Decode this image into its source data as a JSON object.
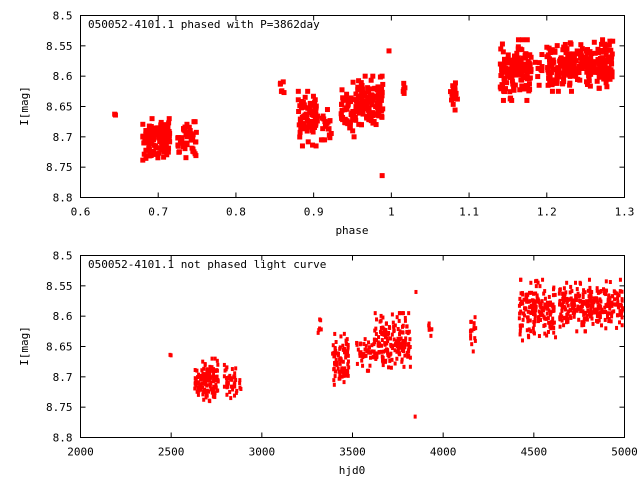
{
  "chart_data": [
    {
      "type": "scatter",
      "title": "050052-4101.1 phased with P=3862day",
      "xlabel": "phase",
      "ylabel": "I[mag]",
      "xlim": [
        0.6,
        1.3
      ],
      "ylim": [
        8.8,
        8.5
      ],
      "y_inverted": true,
      "x_ticks": [
        "0.6",
        "0.7",
        "0.8",
        "0.9",
        "1",
        "1.1",
        "1.2",
        "1.3"
      ],
      "x_tick_values": [
        0.6,
        0.7,
        0.8,
        0.9,
        1.0,
        1.1,
        1.2,
        1.3
      ],
      "y_ticks": [
        "8.5",
        "8.55",
        "8.6",
        "8.65",
        "8.7",
        "8.75",
        "8.8"
      ],
      "y_tick_values": [
        8.5,
        8.55,
        8.6,
        8.65,
        8.7,
        8.75,
        8.8
      ],
      "grid": false,
      "marker_color": "#ff0000",
      "clusters": [
        {
          "x": [
            0.642,
            0.645
          ],
          "y_center": 8.665,
          "y_spread": 0.005,
          "n": 2
        },
        {
          "x": [
            0.68,
            0.715
          ],
          "y_center": 8.705,
          "y_spread": 0.035,
          "n": 120
        },
        {
          "x": [
            0.725,
            0.75
          ],
          "y_center": 8.705,
          "y_spread": 0.03,
          "n": 45
        },
        {
          "x": [
            0.857,
            0.862
          ],
          "y_center": 8.62,
          "y_spread": 0.02,
          "n": 6
        },
        {
          "x": [
            0.88,
            0.905
          ],
          "y_center": 8.67,
          "y_spread": 0.045,
          "n": 80
        },
        {
          "x": [
            0.91,
            0.925
          ],
          "y_center": 8.68,
          "y_spread": 0.025,
          "n": 20
        },
        {
          "x": [
            0.935,
            0.955
          ],
          "y_center": 8.655,
          "y_spread": 0.045,
          "n": 50
        },
        {
          "x": [
            0.955,
            0.99
          ],
          "y_center": 8.64,
          "y_spread": 0.04,
          "n": 120
        },
        {
          "x": [
            0.985,
            0.99
          ],
          "y_center": 8.765,
          "y_spread": 0.002,
          "n": 1
        },
        {
          "x": [
            0.995,
            1.0
          ],
          "y_center": 8.56,
          "y_spread": 0.002,
          "n": 1
        },
        {
          "x": [
            1.015,
            1.02
          ],
          "y_center": 8.62,
          "y_spread": 0.02,
          "n": 7
        },
        {
          "x": [
            1.075,
            1.085
          ],
          "y_center": 8.63,
          "y_spread": 0.03,
          "n": 16
        },
        {
          "x": [
            1.14,
            1.18
          ],
          "y_center": 8.59,
          "y_spread": 0.05,
          "n": 150
        },
        {
          "x": [
            1.185,
            1.195
          ],
          "y_center": 8.585,
          "y_spread": 0.03,
          "n": 10
        },
        {
          "x": [
            1.2,
            1.24
          ],
          "y_center": 8.585,
          "y_spread": 0.04,
          "n": 130
        },
        {
          "x": [
            1.24,
            1.285
          ],
          "y_center": 8.58,
          "y_spread": 0.04,
          "n": 150
        }
      ]
    },
    {
      "type": "scatter",
      "title": "050052-4101.1 not phased light curve",
      "xlabel": "hjd0",
      "ylabel": "I[mag]",
      "xlim": [
        2000,
        5000
      ],
      "ylim": [
        8.8,
        8.5
      ],
      "y_inverted": true,
      "x_ticks": [
        "2000",
        "2500",
        "3000",
        "3500",
        "4000",
        "4500",
        "5000"
      ],
      "x_tick_values": [
        2000,
        2500,
        3000,
        3500,
        4000,
        4500,
        5000
      ],
      "y_ticks": [
        "8.5",
        "8.55",
        "8.6",
        "8.65",
        "8.7",
        "8.75",
        "8.8"
      ],
      "y_tick_values": [
        8.5,
        8.55,
        8.6,
        8.65,
        8.7,
        8.75,
        8.8
      ],
      "grid": false,
      "marker_color": "#ff0000",
      "clusters": [
        {
          "x": [
            2490,
            2500
          ],
          "y_center": 8.665,
          "y_spread": 0.005,
          "n": 2
        },
        {
          "x": [
            2630,
            2760
          ],
          "y_center": 8.705,
          "y_spread": 0.035,
          "n": 130
        },
        {
          "x": [
            2790,
            2890
          ],
          "y_center": 8.705,
          "y_spread": 0.03,
          "n": 45
        },
        {
          "x": [
            3310,
            3330
          ],
          "y_center": 8.62,
          "y_spread": 0.02,
          "n": 6
        },
        {
          "x": [
            3390,
            3480
          ],
          "y_center": 8.67,
          "y_spread": 0.045,
          "n": 90
        },
        {
          "x": [
            3520,
            3620
          ],
          "y_center": 8.66,
          "y_spread": 0.03,
          "n": 40
        },
        {
          "x": [
            3620,
            3820
          ],
          "y_center": 8.64,
          "y_spread": 0.045,
          "n": 170
        },
        {
          "x": [
            3840,
            3850
          ],
          "y_center": 8.765,
          "y_spread": 0.002,
          "n": 1
        },
        {
          "x": [
            3840,
            3850
          ],
          "y_center": 8.56,
          "y_spread": 0.002,
          "n": 1
        },
        {
          "x": [
            3920,
            3940
          ],
          "y_center": 8.62,
          "y_spread": 0.02,
          "n": 7
        },
        {
          "x": [
            4150,
            4180
          ],
          "y_center": 8.63,
          "y_spread": 0.03,
          "n": 16
        },
        {
          "x": [
            4420,
            4620
          ],
          "y_center": 8.59,
          "y_spread": 0.05,
          "n": 170
        },
        {
          "x": [
            4640,
            4800
          ],
          "y_center": 8.585,
          "y_spread": 0.04,
          "n": 140
        },
        {
          "x": [
            4800,
            4990
          ],
          "y_center": 8.58,
          "y_spread": 0.04,
          "n": 160
        }
      ]
    }
  ]
}
